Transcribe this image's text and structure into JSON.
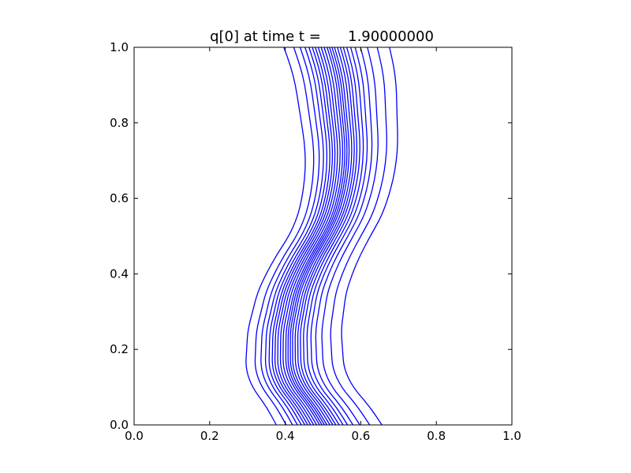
{
  "chart_data": {
    "type": "contour",
    "title": "q[0] at time t =      1.90000000",
    "xlabel": "",
    "ylabel": "",
    "xlim": [
      0.0,
      1.0
    ],
    "ylim": [
      0.0,
      1.0
    ],
    "xticks": [
      "0.0",
      "0.2",
      "0.4",
      "0.6",
      "0.8",
      "1.0"
    ],
    "yticks": [
      "0.0",
      "0.2",
      "0.4",
      "0.6",
      "0.8",
      "1.0"
    ],
    "grid": false,
    "line_color": "#0000ff",
    "centerline": [
      {
        "y": 0.0,
        "x": 0.5
      },
      {
        "y": 0.05,
        "x": 0.47
      },
      {
        "y": 0.1,
        "x": 0.43
      },
      {
        "y": 0.15,
        "x": 0.41
      },
      {
        "y": 0.2,
        "x": 0.41
      },
      {
        "y": 0.25,
        "x": 0.41
      },
      {
        "y": 0.3,
        "x": 0.42
      },
      {
        "y": 0.35,
        "x": 0.43
      },
      {
        "y": 0.4,
        "x": 0.45
      },
      {
        "y": 0.45,
        "x": 0.475
      },
      {
        "y": 0.5,
        "x": 0.505
      },
      {
        "y": 0.55,
        "x": 0.53
      },
      {
        "y": 0.6,
        "x": 0.545
      },
      {
        "y": 0.65,
        "x": 0.555
      },
      {
        "y": 0.7,
        "x": 0.56
      },
      {
        "y": 0.75,
        "x": 0.56
      },
      {
        "y": 0.8,
        "x": 0.555
      },
      {
        "y": 0.85,
        "x": 0.55
      },
      {
        "y": 0.9,
        "x": 0.545
      },
      {
        "y": 0.95,
        "x": 0.535
      },
      {
        "y": 1.0,
        "x": 0.52
      }
    ],
    "contour_offsets": [
      -0.095,
      -0.075,
      -0.062,
      -0.052,
      -0.044,
      -0.037,
      -0.031,
      -0.025,
      -0.019,
      -0.013,
      -0.007,
      -0.002,
      0.003,
      0.008,
      0.014,
      0.02,
      0.026,
      0.033,
      0.041,
      0.05,
      0.061,
      0.075,
      0.095,
      0.12
    ]
  }
}
